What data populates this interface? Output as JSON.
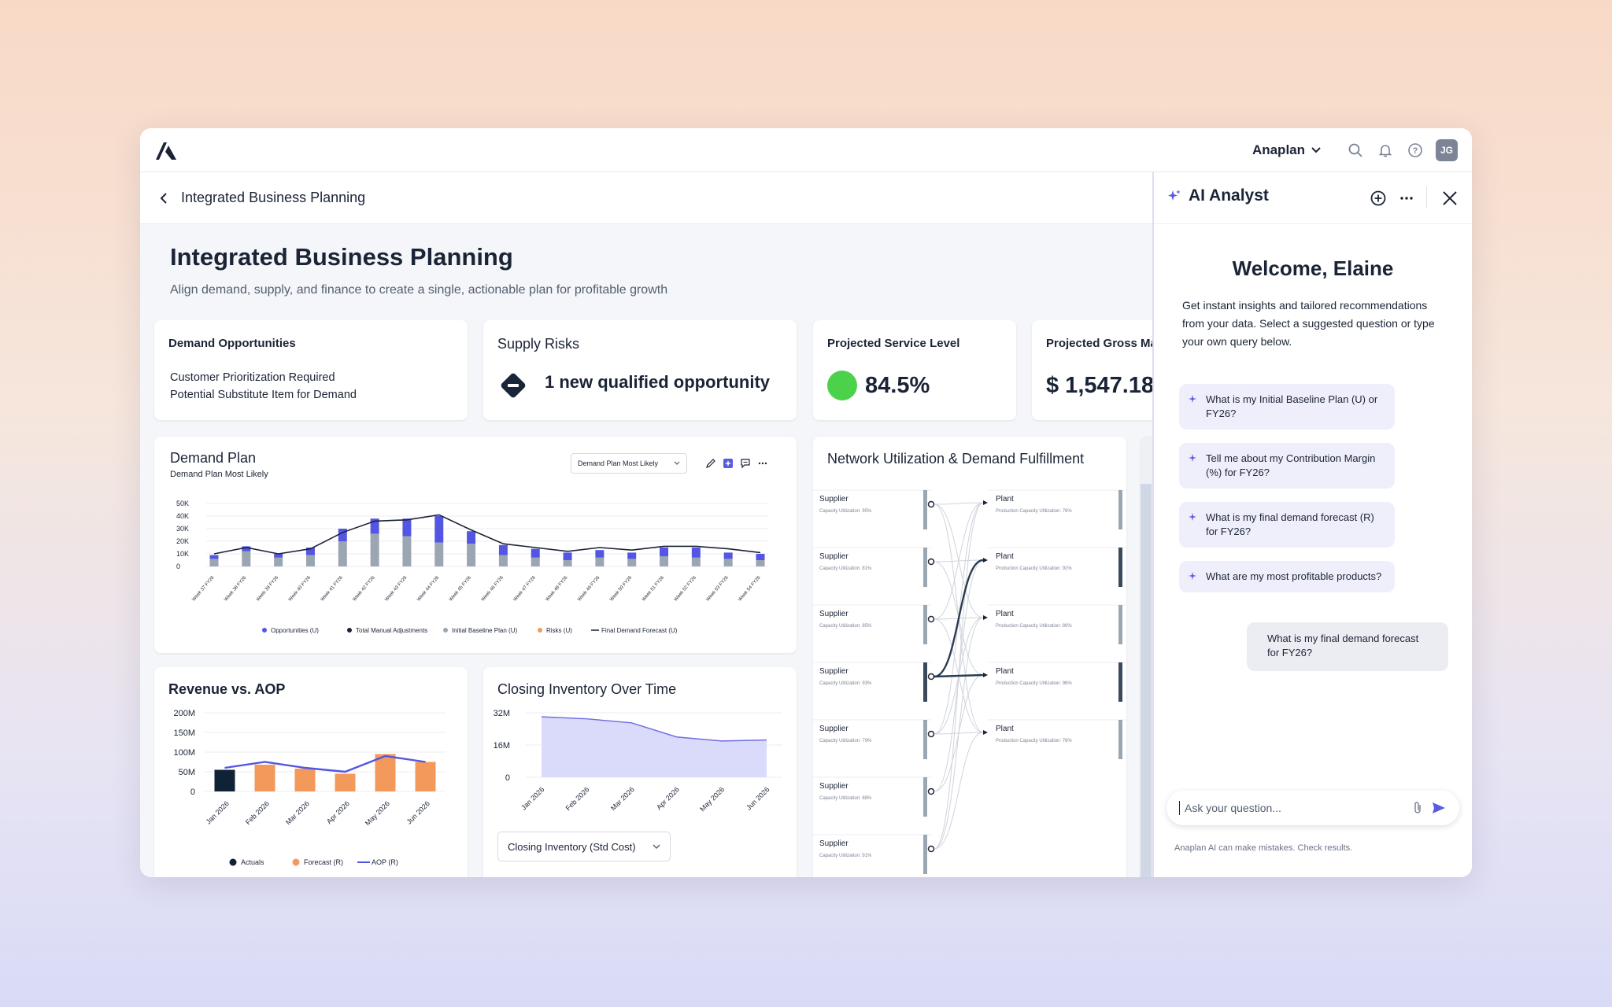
{
  "topbar": {
    "workspace": "Anaplan",
    "avatar": "JG"
  },
  "breadcrumb": {
    "title": "Integrated Business Planning"
  },
  "page": {
    "title": "Integrated Business Planning",
    "subtitle": "Align demand, supply, and finance to create a single, actionable plan for profitable growth"
  },
  "kpis": {
    "demand_opps": {
      "title": "Demand Opportunities",
      "line1": "Customer Prioritization Required",
      "line2": "Potential Substitute Item for Demand"
    },
    "supply_risks": {
      "title": "Supply Risks",
      "text": "1 new qualified opportunity"
    },
    "service_level": {
      "title": "Projected Service Level",
      "value": "84.5%",
      "status_color": "#4cd24a"
    },
    "gross_margin": {
      "title": "Projected Gross Ma",
      "value": "$ 1,547.18I"
    }
  },
  "demand_plan": {
    "title": "Demand Plan",
    "subtitle": "Demand Plan Most Likely",
    "dropdown": "Demand Plan Most Likely",
    "legend": [
      "Opportunities (U)",
      "Total Manual Adjustments",
      "Initial Baseline Plan (U)",
      "Risks (U)",
      "Final Demand Forecast (U)"
    ]
  },
  "revenue": {
    "title": "Revenue vs. AOP",
    "legend": [
      "Actuals",
      "Forecast (R)",
      "AOP (R)"
    ]
  },
  "inventory": {
    "title": "Closing Inventory Over Time",
    "dropdown": "Closing Inventory (Std Cost)"
  },
  "network": {
    "title": "Network Utilization & Demand Fulfillment",
    "suppliers": [
      {
        "label": "Supplier",
        "util": "Capacity Utilization: 95%"
      },
      {
        "label": "Supplier",
        "util": "Capacity Utilization: 81%"
      },
      {
        "label": "Supplier",
        "util": "Capacity Utilization: 85%"
      },
      {
        "label": "Supplier",
        "util": "Capacity Utilization: 93%"
      },
      {
        "label": "Supplier",
        "util": "Capacity Utilization: 79%"
      },
      {
        "label": "Supplier",
        "util": "Capacity Utilization: 88%"
      },
      {
        "label": "Supplier",
        "util": "Capacity Utilization: 91%"
      }
    ],
    "plants": [
      {
        "label": "Plant",
        "util": "Production Capacity Utilization: 78%"
      },
      {
        "label": "Plant",
        "util": "Production Capacity Utilization: 92%"
      },
      {
        "label": "Plant",
        "util": "Production Capacity Utilization: 89%"
      },
      {
        "label": "Plant",
        "util": "Production Capacity Utilization: 98%"
      },
      {
        "label": "Plant",
        "util": "Production Capacity Utilization: 78%"
      }
    ]
  },
  "ai": {
    "title": "AI Analyst",
    "welcome": "Welcome, Elaine",
    "intro": "Get instant insights and tailored recommendations from your data. Select a suggested question or type your own query below.",
    "suggestions": [
      "What is my Initial Baseline Plan (U) or FY26?",
      "Tell me about my Contribution Margin (%) for FY26?",
      "What is my final demand forecast (R) for FY26?",
      "What are my most profitable products?"
    ],
    "user_question": "What is my final demand forecast for FY26?",
    "input_placeholder": "Ask your question...",
    "disclaimer": "Anaplan AI can make mistakes. Check results."
  },
  "chart_data": [
    {
      "type": "bar",
      "title": "Demand Plan",
      "subtitle": "Demand Plan Most Likely",
      "categories": [
        "Week 37 FY26",
        "Week 38 FY26",
        "Week 39 FY26",
        "Week 40 FY26",
        "Week 41 FY26",
        "Week 42 FY26",
        "Week 43 FY26",
        "Week 44 FY26",
        "Week 45 FY26",
        "Week 46 FY26",
        "Week 47 FY26",
        "Week 48 FY26",
        "Week 49 FY26",
        "Week 50 FY26",
        "Week 51 FY26",
        "Week 52 FY26",
        "Week 53 FY26",
        "Week 54 FY26"
      ],
      "yticks": [
        "50K",
        "40K",
        "30K",
        "20K",
        "10K",
        "0"
      ],
      "ylim": [
        0,
        50000
      ],
      "series": [
        {
          "name": "Initial Baseline Plan (U)",
          "values": [
            6000,
            12000,
            7000,
            9000,
            20000,
            26000,
            24000,
            19000,
            18000,
            9000,
            7000,
            5000,
            7000,
            6000,
            8000,
            7000,
            6000,
            5000
          ]
        },
        {
          "name": "Opportunities (U)",
          "values": [
            3000,
            4000,
            3000,
            6000,
            10000,
            12000,
            14000,
            21000,
            10000,
            8000,
            7000,
            6000,
            6000,
            5000,
            7000,
            8000,
            5000,
            5000
          ]
        },
        {
          "name": "Final Demand Forecast (U)",
          "values": [
            10000,
            15000,
            10000,
            14000,
            27000,
            36000,
            37000,
            41000,
            29000,
            18000,
            15000,
            12000,
            15000,
            13000,
            16000,
            16000,
            14000,
            11000
          ]
        }
      ],
      "legend": [
        "Opportunities (U)",
        "Total Manual Adjustments",
        "Initial Baseline Plan (U)",
        "Risks (U)",
        "Final Demand Forecast (U)"
      ]
    },
    {
      "type": "bar",
      "title": "Revenue vs. AOP",
      "categories": [
        "Jan 2026",
        "Feb 2026",
        "Mar 2026",
        "Apr 2026",
        "May 2026",
        "Jun 2026"
      ],
      "yticks": [
        "200M",
        "150M",
        "100M",
        "50M",
        "0"
      ],
      "ylim": [
        0,
        200000000
      ],
      "series": [
        {
          "name": "Actuals",
          "values": [
            55000000,
            null,
            null,
            null,
            null,
            null
          ]
        },
        {
          "name": "Forecast (R)",
          "values": [
            null,
            68000000,
            58000000,
            45000000,
            95000000,
            75000000
          ]
        },
        {
          "name": "AOP (R)",
          "values": [
            60000000,
            75000000,
            60000000,
            50000000,
            90000000,
            75000000
          ]
        }
      ]
    },
    {
      "type": "area",
      "title": "Closing Inventory Over Time",
      "categories": [
        "Jan 2026",
        "Feb 2026",
        "Mar 2026",
        "Apr 2026",
        "May 2026",
        "Jun 2026"
      ],
      "yticks": [
        "32M",
        "16M",
        "0"
      ],
      "ylim": [
        0,
        32000000
      ],
      "series": [
        {
          "name": "Closing Inventory (Std Cost)",
          "values": [
            30000000,
            29000000,
            27000000,
            20000000,
            18000000,
            18500000
          ]
        }
      ]
    }
  ]
}
